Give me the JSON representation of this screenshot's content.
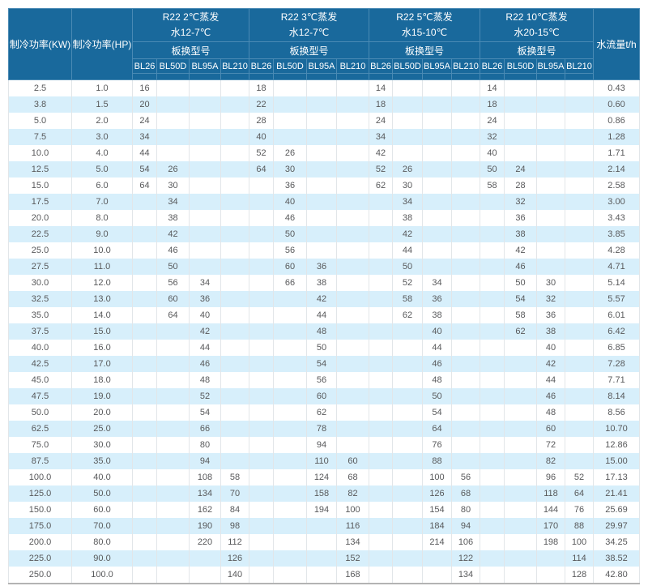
{
  "table": {
    "headers": {
      "kw": "制冷功率(KW)",
      "hp": "制冷功率(HP)",
      "flow": "水流量t/h",
      "model_label": "板换型号"
    },
    "groups": [
      {
        "title": "R22 2℃蒸发",
        "subtitle": "水12-7℃",
        "models": [
          "BL26",
          "BL50D",
          "BL95A",
          "BL210"
        ]
      },
      {
        "title": "R22 3℃蒸发",
        "subtitle": "水12-7℃",
        "models": [
          "BL26",
          "BL50D",
          "BL95A",
          "BL210"
        ]
      },
      {
        "title": "R22 5℃蒸发",
        "subtitle": "水15-10℃",
        "models": [
          "BL26",
          "BL50D",
          "BL95A",
          "BL210"
        ]
      },
      {
        "title": "R22 10℃蒸发",
        "subtitle": "水20-15℃",
        "models": [
          "BL26",
          "BL50D",
          "BL95A",
          "BL210"
        ]
      }
    ],
    "rows": [
      {
        "kw": "2.5",
        "hp": "1.0",
        "values": [
          "16",
          "",
          "",
          "",
          "18",
          "",
          "",
          "",
          "14",
          "",
          "",
          "",
          "14",
          "",
          "",
          ""
        ],
        "flow": "0.43"
      },
      {
        "kw": "3.8",
        "hp": "1.5",
        "values": [
          "20",
          "",
          "",
          "",
          "22",
          "",
          "",
          "",
          "18",
          "",
          "",
          "",
          "18",
          "",
          "",
          ""
        ],
        "flow": "0.60"
      },
      {
        "kw": "5.0",
        "hp": "2.0",
        "values": [
          "24",
          "",
          "",
          "",
          "28",
          "",
          "",
          "",
          "24",
          "",
          "",
          "",
          "24",
          "",
          "",
          ""
        ],
        "flow": "0.86"
      },
      {
        "kw": "7.5",
        "hp": "3.0",
        "values": [
          "34",
          "",
          "",
          "",
          "40",
          "",
          "",
          "",
          "34",
          "",
          "",
          "",
          "32",
          "",
          "",
          ""
        ],
        "flow": "1.28"
      },
      {
        "kw": "10.0",
        "hp": "4.0",
        "values": [
          "44",
          "",
          "",
          "",
          "52",
          "26",
          "",
          "",
          "42",
          "",
          "",
          "",
          "40",
          "",
          "",
          ""
        ],
        "flow": "1.71"
      },
      {
        "kw": "12.5",
        "hp": "5.0",
        "values": [
          "54",
          "26",
          "",
          "",
          "64",
          "30",
          "",
          "",
          "52",
          "26",
          "",
          "",
          "50",
          "24",
          "",
          ""
        ],
        "flow": "2.14"
      },
      {
        "kw": "15.0",
        "hp": "6.0",
        "values": [
          "64",
          "30",
          "",
          "",
          "",
          "36",
          "",
          "",
          "62",
          "30",
          "",
          "",
          "58",
          "28",
          "",
          ""
        ],
        "flow": "2.58"
      },
      {
        "kw": "17.5",
        "hp": "7.0",
        "values": [
          "",
          "34",
          "",
          "",
          "",
          "40",
          "",
          "",
          "",
          "34",
          "",
          "",
          "",
          "32",
          "",
          ""
        ],
        "flow": "3.00"
      },
      {
        "kw": "20.0",
        "hp": "8.0",
        "values": [
          "",
          "38",
          "",
          "",
          "",
          "46",
          "",
          "",
          "",
          "38",
          "",
          "",
          "",
          "36",
          "",
          ""
        ],
        "flow": "3.43"
      },
      {
        "kw": "22.5",
        "hp": "9.0",
        "values": [
          "",
          "42",
          "",
          "",
          "",
          "50",
          "",
          "",
          "",
          "42",
          "",
          "",
          "",
          "38",
          "",
          ""
        ],
        "flow": "3.85"
      },
      {
        "kw": "25.0",
        "hp": "10.0",
        "values": [
          "",
          "46",
          "",
          "",
          "",
          "56",
          "",
          "",
          "",
          "44",
          "",
          "",
          "",
          "42",
          "",
          ""
        ],
        "flow": "4.28"
      },
      {
        "kw": "27.5",
        "hp": "11.0",
        "values": [
          "",
          "50",
          "",
          "",
          "",
          "60",
          "36",
          "",
          "",
          "50",
          "",
          "",
          "",
          "46",
          "",
          ""
        ],
        "flow": "4.71"
      },
      {
        "kw": "30.0",
        "hp": "12.0",
        "values": [
          "",
          "56",
          "34",
          "",
          "",
          "66",
          "38",
          "",
          "",
          "52",
          "34",
          "",
          "",
          "50",
          "30",
          ""
        ],
        "flow": "5.14"
      },
      {
        "kw": "32.5",
        "hp": "13.0",
        "values": [
          "",
          "60",
          "36",
          "",
          "",
          "",
          "42",
          "",
          "",
          "58",
          "36",
          "",
          "",
          "54",
          "32",
          ""
        ],
        "flow": "5.57"
      },
      {
        "kw": "35.0",
        "hp": "14.0",
        "values": [
          "",
          "64",
          "40",
          "",
          "",
          "",
          "44",
          "",
          "",
          "62",
          "38",
          "",
          "",
          "58",
          "36",
          ""
        ],
        "flow": "6.01"
      },
      {
        "kw": "37.5",
        "hp": "15.0",
        "values": [
          "",
          "",
          "42",
          "",
          "",
          "",
          "48",
          "",
          "",
          "",
          "40",
          "",
          "",
          "62",
          "38",
          ""
        ],
        "flow": "6.42"
      },
      {
        "kw": "40.0",
        "hp": "16.0",
        "values": [
          "",
          "",
          "44",
          "",
          "",
          "",
          "50",
          "",
          "",
          "",
          "44",
          "",
          "",
          "",
          "40",
          ""
        ],
        "flow": "6.85"
      },
      {
        "kw": "42.5",
        "hp": "17.0",
        "values": [
          "",
          "",
          "46",
          "",
          "",
          "",
          "54",
          "",
          "",
          "",
          "46",
          "",
          "",
          "",
          "42",
          ""
        ],
        "flow": "7.28"
      },
      {
        "kw": "45.0",
        "hp": "18.0",
        "values": [
          "",
          "",
          "48",
          "",
          "",
          "",
          "56",
          "",
          "",
          "",
          "48",
          "",
          "",
          "",
          "44",
          ""
        ],
        "flow": "7.71"
      },
      {
        "kw": "47.5",
        "hp": "19.0",
        "values": [
          "",
          "",
          "52",
          "",
          "",
          "",
          "60",
          "",
          "",
          "",
          "50",
          "",
          "",
          "",
          "46",
          ""
        ],
        "flow": "8.14"
      },
      {
        "kw": "50.0",
        "hp": "20.0",
        "values": [
          "",
          "",
          "54",
          "",
          "",
          "",
          "62",
          "",
          "",
          "",
          "54",
          "",
          "",
          "",
          "48",
          ""
        ],
        "flow": "8.56"
      },
      {
        "kw": "62.5",
        "hp": "25.0",
        "values": [
          "",
          "",
          "66",
          "",
          "",
          "",
          "78",
          "",
          "",
          "",
          "64",
          "",
          "",
          "",
          "60",
          ""
        ],
        "flow": "10.70"
      },
      {
        "kw": "75.0",
        "hp": "30.0",
        "values": [
          "",
          "",
          "80",
          "",
          "",
          "",
          "94",
          "",
          "",
          "",
          "76",
          "",
          "",
          "",
          "72",
          ""
        ],
        "flow": "12.86"
      },
      {
        "kw": "87.5",
        "hp": "35.0",
        "values": [
          "",
          "",
          "94",
          "",
          "",
          "",
          "110",
          "60",
          "",
          "",
          "88",
          "",
          "",
          "",
          "82",
          ""
        ],
        "flow": "15.00"
      },
      {
        "kw": "100.0",
        "hp": "40.0",
        "values": [
          "",
          "",
          "108",
          "58",
          "",
          "",
          "124",
          "68",
          "",
          "",
          "100",
          "56",
          "",
          "",
          "96",
          "52"
        ],
        "flow": "17.13"
      },
      {
        "kw": "125.0",
        "hp": "50.0",
        "values": [
          "",
          "",
          "134",
          "70",
          "",
          "",
          "158",
          "82",
          "",
          "",
          "126",
          "68",
          "",
          "",
          "118",
          "64"
        ],
        "flow": "21.41"
      },
      {
        "kw": "150.0",
        "hp": "60.0",
        "values": [
          "",
          "",
          "162",
          "84",
          "",
          "",
          "194",
          "100",
          "",
          "",
          "154",
          "80",
          "",
          "",
          "144",
          "76"
        ],
        "flow": "25.69"
      },
      {
        "kw": "175.0",
        "hp": "70.0",
        "values": [
          "",
          "",
          "190",
          "98",
          "",
          "",
          "",
          "116",
          "",
          "",
          "184",
          "94",
          "",
          "",
          "170",
          "88"
        ],
        "flow": "29.97"
      },
      {
        "kw": "200.0",
        "hp": "80.0",
        "values": [
          "",
          "",
          "220",
          "112",
          "",
          "",
          "",
          "134",
          "",
          "",
          "214",
          "106",
          "",
          "",
          "198",
          "100"
        ],
        "flow": "34.25"
      },
      {
        "kw": "225.0",
        "hp": "90.0",
        "values": [
          "",
          "",
          "",
          "126",
          "",
          "",
          "",
          "152",
          "",
          "",
          "",
          "122",
          "",
          "",
          "",
          "114"
        ],
        "flow": "38.52"
      },
      {
        "kw": "250.0",
        "hp": "100.0",
        "values": [
          "",
          "",
          "",
          "140",
          "",
          "",
          "",
          "168",
          "",
          "",
          "",
          "134",
          "",
          "",
          "",
          "128"
        ],
        "flow": "42.80"
      }
    ]
  },
  "colors": {
    "header_bg": "#19699c",
    "header_border": "#4a8ab4",
    "header_text": "#ffffff",
    "row_alt_bg": "#d7effb",
    "row_bg": "#ffffff",
    "body_border": "#e2e6e9",
    "text": "#58595b",
    "table_bottom_border": "#b3b3b3"
  }
}
